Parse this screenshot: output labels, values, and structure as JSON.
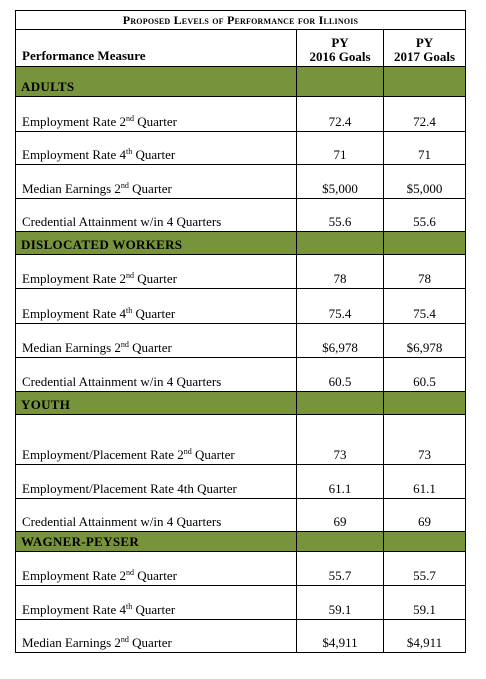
{
  "table": {
    "title": "Proposed Levels of Performance for Illinois",
    "col_measure": "Performance Measure",
    "col_2016_line1": "PY",
    "col_2016_line2": "2016 Goals",
    "col_2017_line1": "PY",
    "col_2017_line2": "2017 Goals",
    "accent_color": "#77933c"
  },
  "sections": [
    {
      "name": "ADULTS",
      "rows": [
        {
          "pre": "Employment Rate 2",
          "sup": "nd",
          "post": " Quarter",
          "py2016": "72.4",
          "py2017": "72.4"
        },
        {
          "pre": "Employment Rate 4",
          "sup": "th",
          "post": " Quarter",
          "py2016": "71",
          "py2017": "71"
        },
        {
          "pre": "Median Earnings 2",
          "sup": "nd",
          "post": " Quarter",
          "py2016": "$5,000",
          "py2017": "$5,000"
        },
        {
          "pre": "Credential Attainment w/in 4 Quarters",
          "sup": "",
          "post": "",
          "py2016": "55.6",
          "py2017": "55.6"
        }
      ]
    },
    {
      "name": "DISLOCATED WORKERS",
      "rows": [
        {
          "pre": "Employment Rate 2",
          "sup": "nd",
          "post": " Quarter",
          "py2016": "78",
          "py2017": "78"
        },
        {
          "pre": "Employment Rate 4",
          "sup": "th",
          "post": " Quarter",
          "py2016": "75.4",
          "py2017": "75.4"
        },
        {
          "pre": "Median Earnings 2",
          "sup": "nd",
          "post": " Quarter",
          "py2016": "$6,978",
          "py2017": "$6,978"
        },
        {
          "pre": "Credential Attainment w/in 4 Quarters",
          "sup": "",
          "post": "",
          "py2016": "60.5",
          "py2017": "60.5"
        }
      ]
    },
    {
      "name": "YOUTH",
      "rows": [
        {
          "pre": "Employment/Placement Rate 2",
          "sup": "nd",
          "post": " Quarter",
          "py2016": "73",
          "py2017": "73"
        },
        {
          "pre": "Employment/Placement Rate 4th Quarter",
          "sup": "",
          "post": "",
          "py2016": "61.1",
          "py2017": "61.1"
        },
        {
          "pre": "Credential Attainment w/in 4 Quarters",
          "sup": "",
          "post": "",
          "py2016": "69",
          "py2017": "69"
        }
      ]
    },
    {
      "name": "WAGNER-PEYSER",
      "rows": [
        {
          "pre": "Employment Rate 2",
          "sup": "nd",
          "post": " Quarter",
          "py2016": "55.7",
          "py2017": "55.7"
        },
        {
          "pre": "Employment Rate 4",
          "sup": "th",
          "post": " Quarter",
          "py2016": "59.1",
          "py2017": "59.1"
        },
        {
          "pre": "Median Earnings 2",
          "sup": "nd",
          "post": " Quarter",
          "py2016": "$4,911",
          "py2017": "$4,911"
        }
      ]
    }
  ]
}
